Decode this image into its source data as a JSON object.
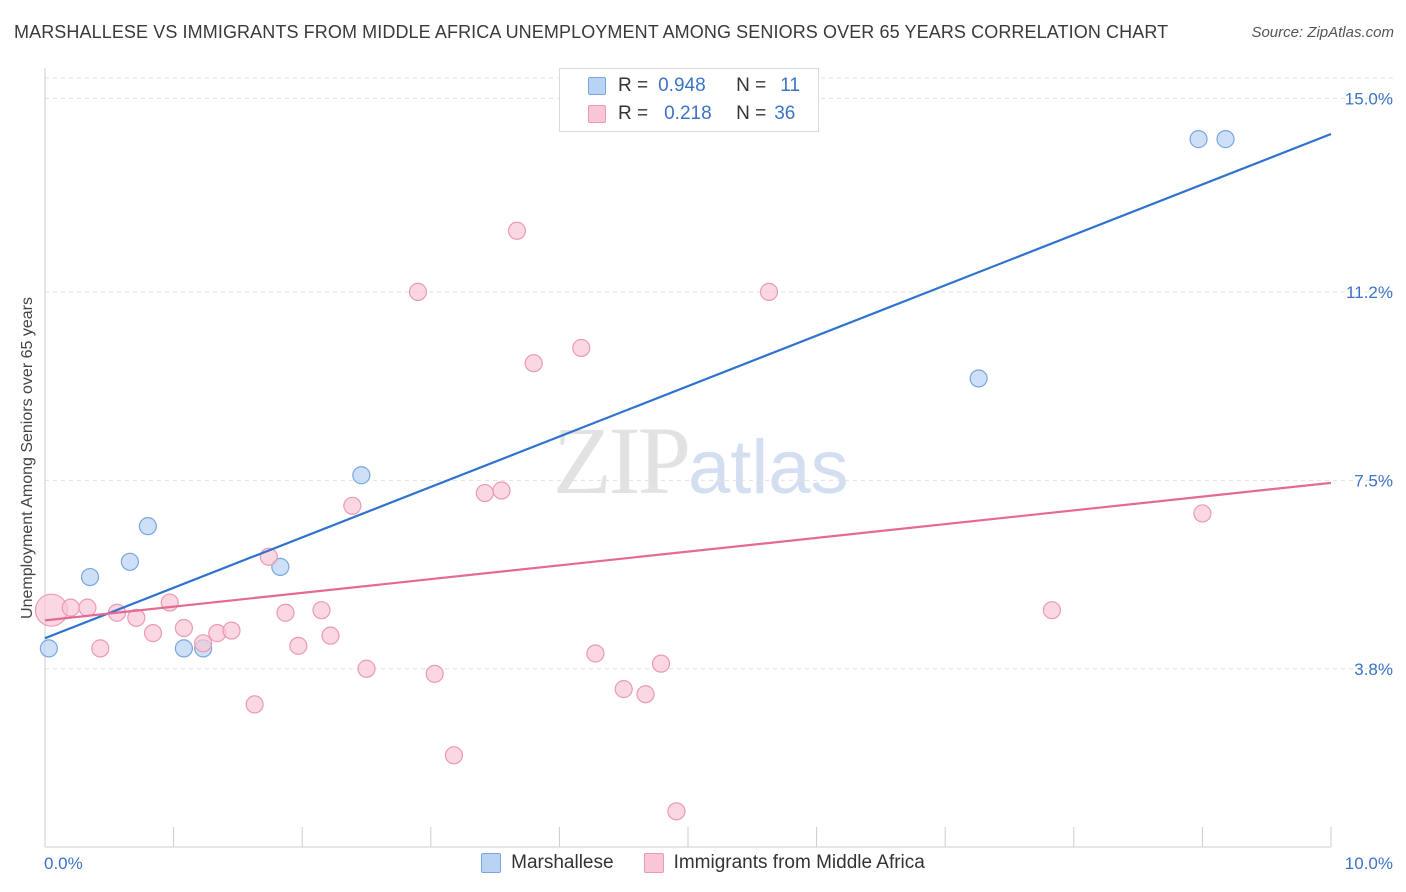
{
  "header": {
    "title": "MARSHALLESE VS IMMIGRANTS FROM MIDDLE AFRICA UNEMPLOYMENT AMONG SENIORS OVER 65 YEARS CORRELATION CHART",
    "source": "Source: ZipAtlas.com"
  },
  "watermark": {
    "zip": "ZIP",
    "atlas": "atlas"
  },
  "legend_top": {
    "rows": [
      {
        "r_label": "R =",
        "r_value": "0.948",
        "n_label": "N =",
        "n_value": "11"
      },
      {
        "r_label": "R =",
        "r_value": "0.218",
        "n_label": "N =",
        "n_value": "36"
      }
    ]
  },
  "colors": {
    "blue_fill": "#b8d3f4",
    "blue_stroke": "#7aa6dd",
    "blue_line": "#2f73cc",
    "pink_fill": "#f8c6d6",
    "pink_stroke": "#eb9ab4",
    "pink_line": "#e46a95",
    "tick_label": "#3b74c4",
    "grid": "#e0e0e0"
  },
  "chart_data": {
    "type": "scatter",
    "title": "MARSHALLESE VS IMMIGRANTS FROM MIDDLE AFRICA UNEMPLOYMENT AMONG SENIORS OVER 65 YEARS CORRELATION CHART",
    "xlabel": "",
    "ylabel": "Unemployment Among Seniors over 65 years",
    "xlim": [
      0,
      10
    ],
    "ylim": [
      0.3,
      15.4
    ],
    "x_tick_labels": [
      "0.0%",
      "10.0%"
    ],
    "y_ticks": [
      3.8,
      7.5,
      11.2,
      15.0
    ],
    "y_tick_labels": [
      "3.8%",
      "7.5%",
      "11.2%",
      "15.0%"
    ],
    "grid": true,
    "legend_position": "bottom",
    "series": [
      {
        "name": "Marshallese",
        "color": "blue",
        "points": [
          {
            "x": 0.03,
            "y": 4.2
          },
          {
            "x": 0.35,
            "y": 5.6
          },
          {
            "x": 0.66,
            "y": 5.9
          },
          {
            "x": 0.8,
            "y": 6.6
          },
          {
            "x": 1.08,
            "y": 4.2
          },
          {
            "x": 1.23,
            "y": 4.2
          },
          {
            "x": 1.83,
            "y": 5.8
          },
          {
            "x": 2.46,
            "y": 7.6
          },
          {
            "x": 7.26,
            "y": 9.5
          },
          {
            "x": 8.97,
            "y": 14.2
          },
          {
            "x": 9.18,
            "y": 14.2
          }
        ],
        "trend": {
          "x": [
            0,
            10
          ],
          "y": [
            4.4,
            14.3
          ]
        }
      },
      {
        "name": "Immigrants from Middle Africa",
        "color": "pink",
        "points": [
          {
            "x": 0.05,
            "y": 4.95,
            "size": "large"
          },
          {
            "x": 0.2,
            "y": 5.0
          },
          {
            "x": 0.33,
            "y": 5.0
          },
          {
            "x": 0.43,
            "y": 4.2
          },
          {
            "x": 0.56,
            "y": 4.9
          },
          {
            "x": 0.71,
            "y": 4.8
          },
          {
            "x": 0.84,
            "y": 4.5
          },
          {
            "x": 0.97,
            "y": 5.1
          },
          {
            "x": 1.08,
            "y": 4.6
          },
          {
            "x": 1.23,
            "y": 4.3
          },
          {
            "x": 1.34,
            "y": 4.5
          },
          {
            "x": 1.45,
            "y": 4.55
          },
          {
            "x": 1.63,
            "y": 3.1
          },
          {
            "x": 1.74,
            "y": 6.0
          },
          {
            "x": 1.87,
            "y": 4.9
          },
          {
            "x": 1.97,
            "y": 4.25
          },
          {
            "x": 2.15,
            "y": 4.95
          },
          {
            "x": 2.22,
            "y": 4.45
          },
          {
            "x": 2.39,
            "y": 7.0
          },
          {
            "x": 2.5,
            "y": 3.8
          },
          {
            "x": 2.9,
            "y": 11.2
          },
          {
            "x": 3.03,
            "y": 3.7
          },
          {
            "x": 3.18,
            "y": 2.1
          },
          {
            "x": 3.42,
            "y": 7.25
          },
          {
            "x": 3.55,
            "y": 7.3
          },
          {
            "x": 3.67,
            "y": 12.4
          },
          {
            "x": 3.8,
            "y": 9.8
          },
          {
            "x": 4.17,
            "y": 10.1
          },
          {
            "x": 4.28,
            "y": 4.1
          },
          {
            "x": 4.5,
            "y": 3.4
          },
          {
            "x": 4.67,
            "y": 3.3
          },
          {
            "x": 4.79,
            "y": 3.9
          },
          {
            "x": 4.91,
            "y": 1.0
          },
          {
            "x": 5.63,
            "y": 11.2
          },
          {
            "x": 7.83,
            "y": 4.95
          },
          {
            "x": 9.0,
            "y": 6.85
          }
        ],
        "trend": {
          "x": [
            0,
            10
          ],
          "y": [
            4.75,
            7.45
          ]
        }
      }
    ]
  },
  "bottom_legend": {
    "items": [
      {
        "label": "Marshallese"
      },
      {
        "label": "Immigrants from Middle Africa"
      }
    ]
  }
}
